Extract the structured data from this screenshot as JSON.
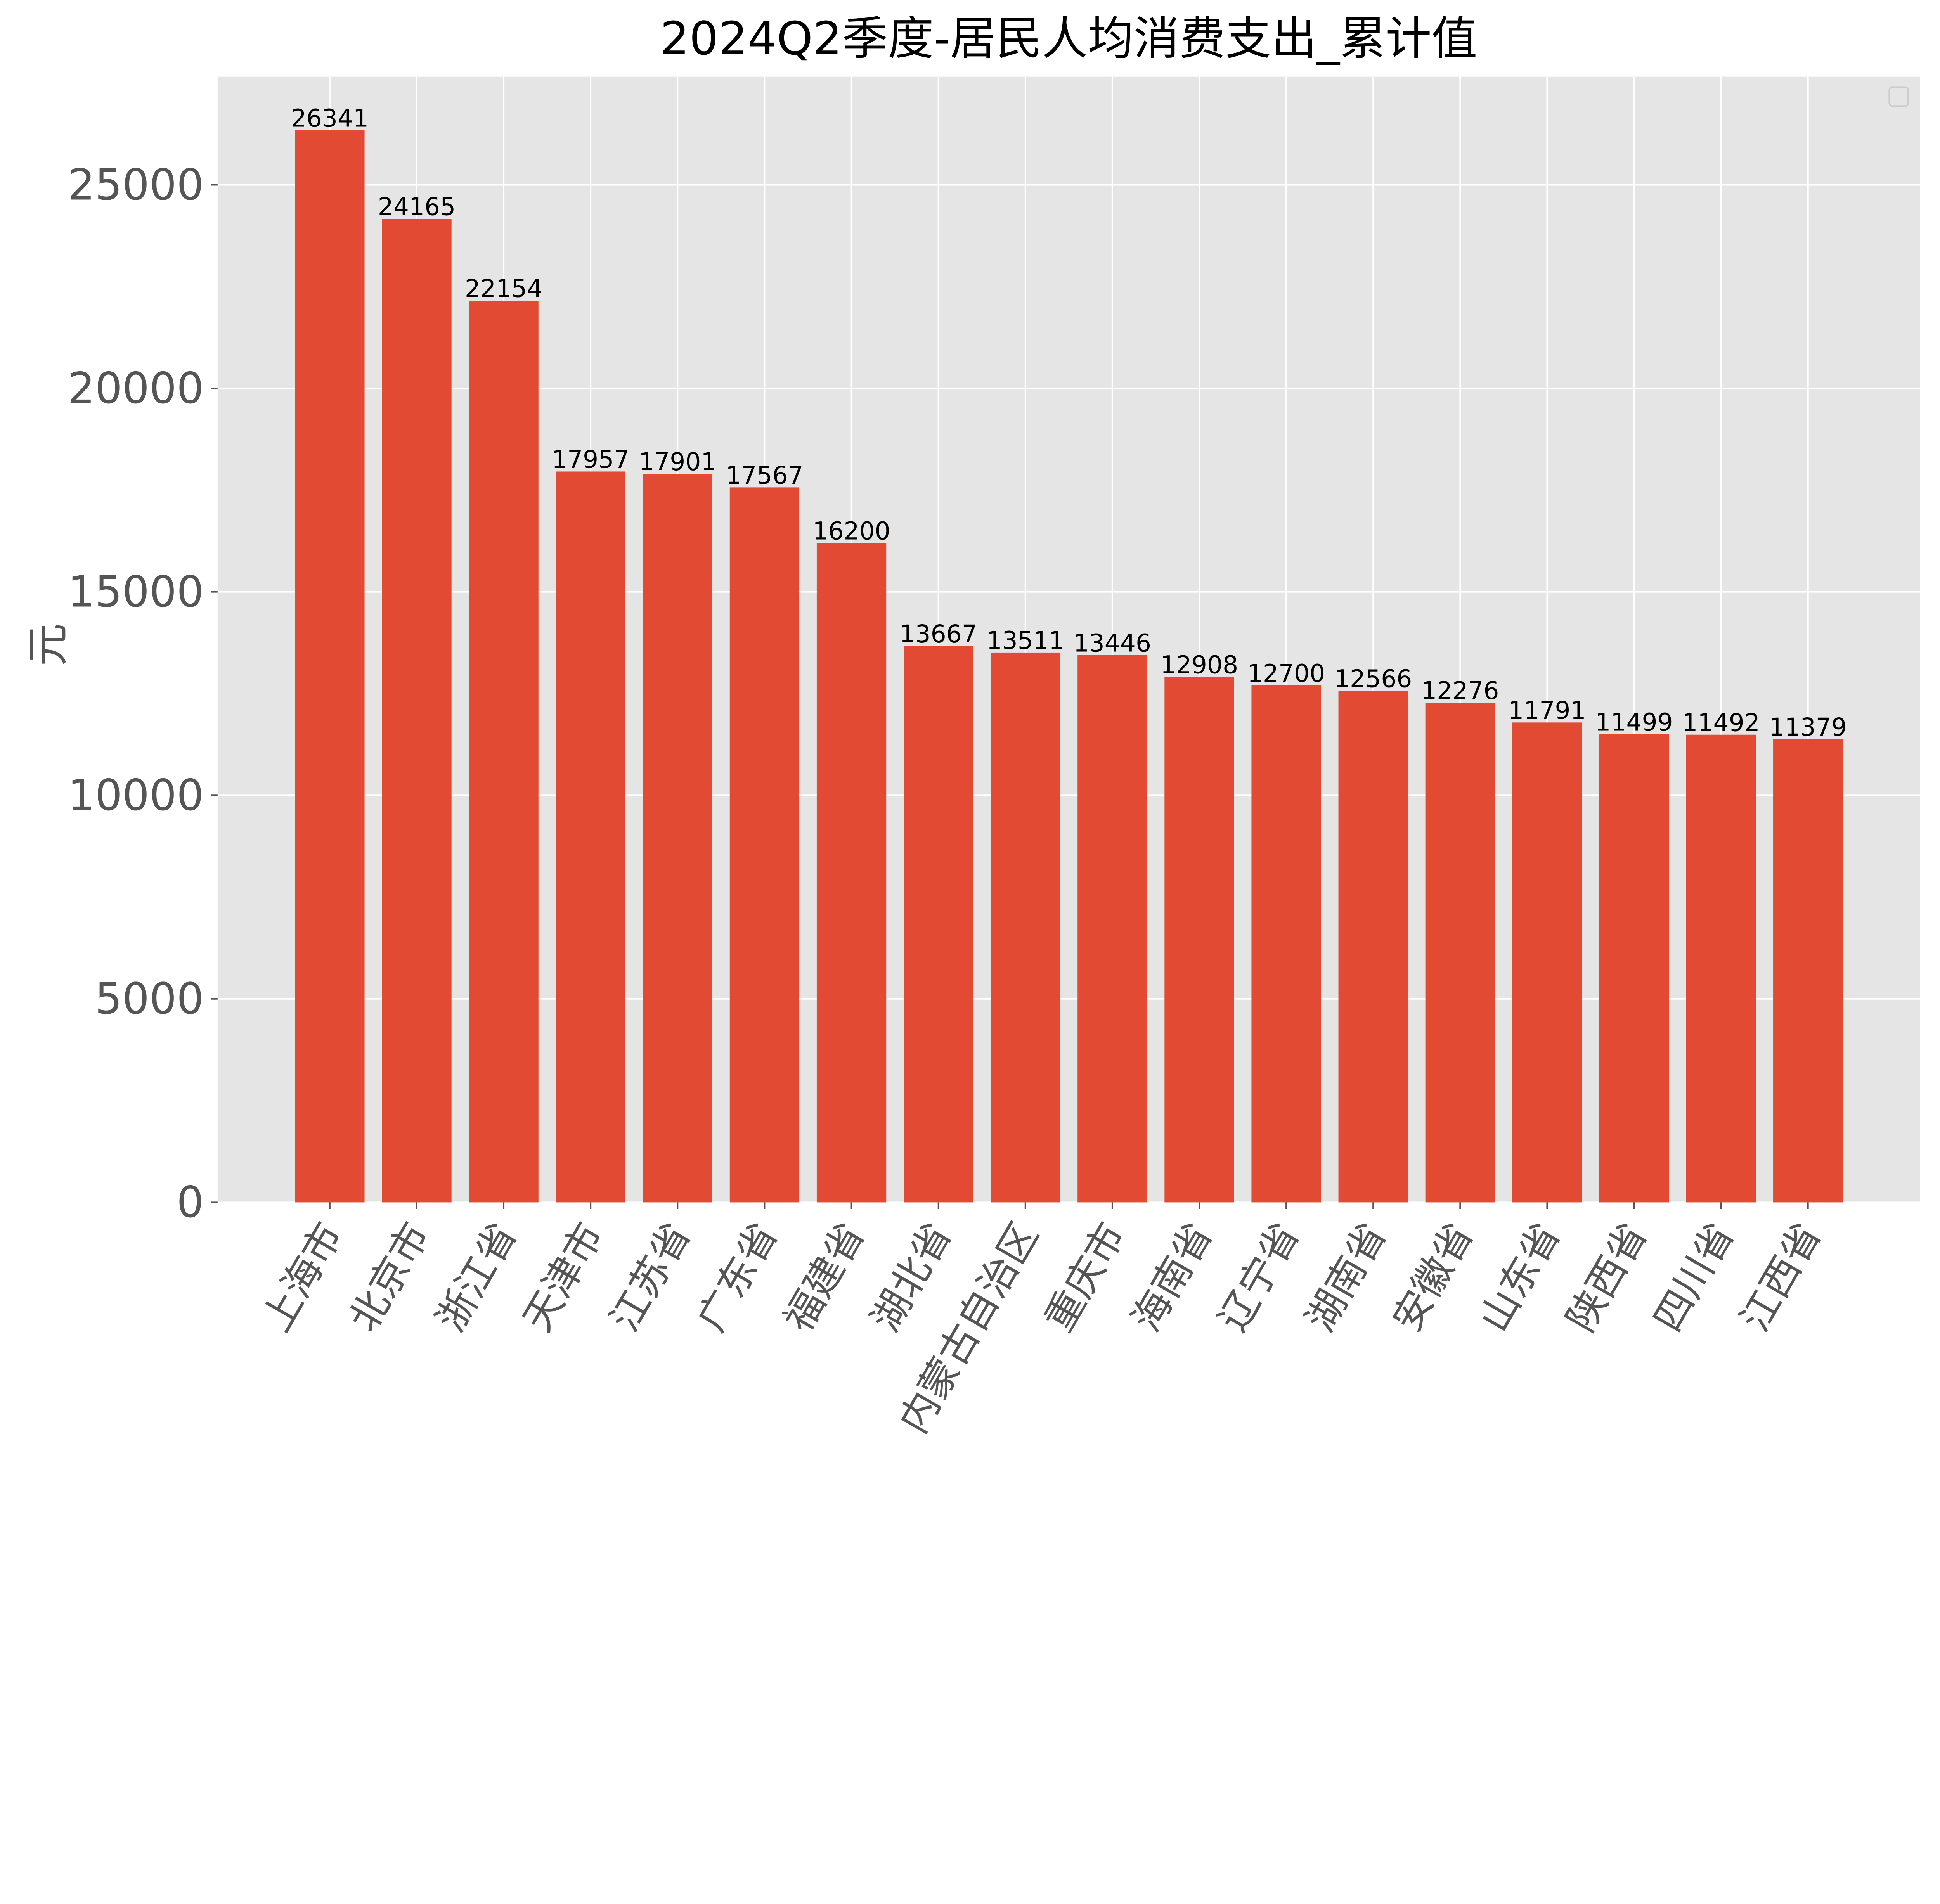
{
  "chart_data": {
    "type": "bar",
    "title": "2024Q2季度-居民人均消费支出_累计值",
    "xlabel": "",
    "ylabel": "元",
    "ylim": [
      0,
      27658
    ],
    "yticks": [
      0,
      5000,
      10000,
      15000,
      20000,
      25000
    ],
    "grid": true,
    "legend": "top-right (empty)",
    "bar_color": "#E24A33",
    "background_color": "#E5E5E5",
    "categories": [
      "上海市",
      "北京市",
      "浙江省",
      "天津市",
      "江苏省",
      "广东省",
      "福建省",
      "湖北省",
      "内蒙古自治区",
      "重庆市",
      "海南省",
      "辽宁省",
      "湖南省",
      "安徽省",
      "山东省",
      "陕西省",
      "四川省",
      "江西省"
    ],
    "values": [
      26341,
      24165,
      22154,
      17957,
      17901,
      17567,
      16200,
      13667,
      13511,
      13446,
      12908,
      12700,
      12566,
      12276,
      11791,
      11499,
      11492,
      11379
    ],
    "data_labels": [
      "26341",
      "24165",
      "22154",
      "17957",
      "17901",
      "17567",
      "16200",
      "13667",
      "13511",
      "13446",
      "12908",
      "12700",
      "12566",
      "12276",
      "11791",
      "11499",
      "11492",
      "11379"
    ]
  }
}
